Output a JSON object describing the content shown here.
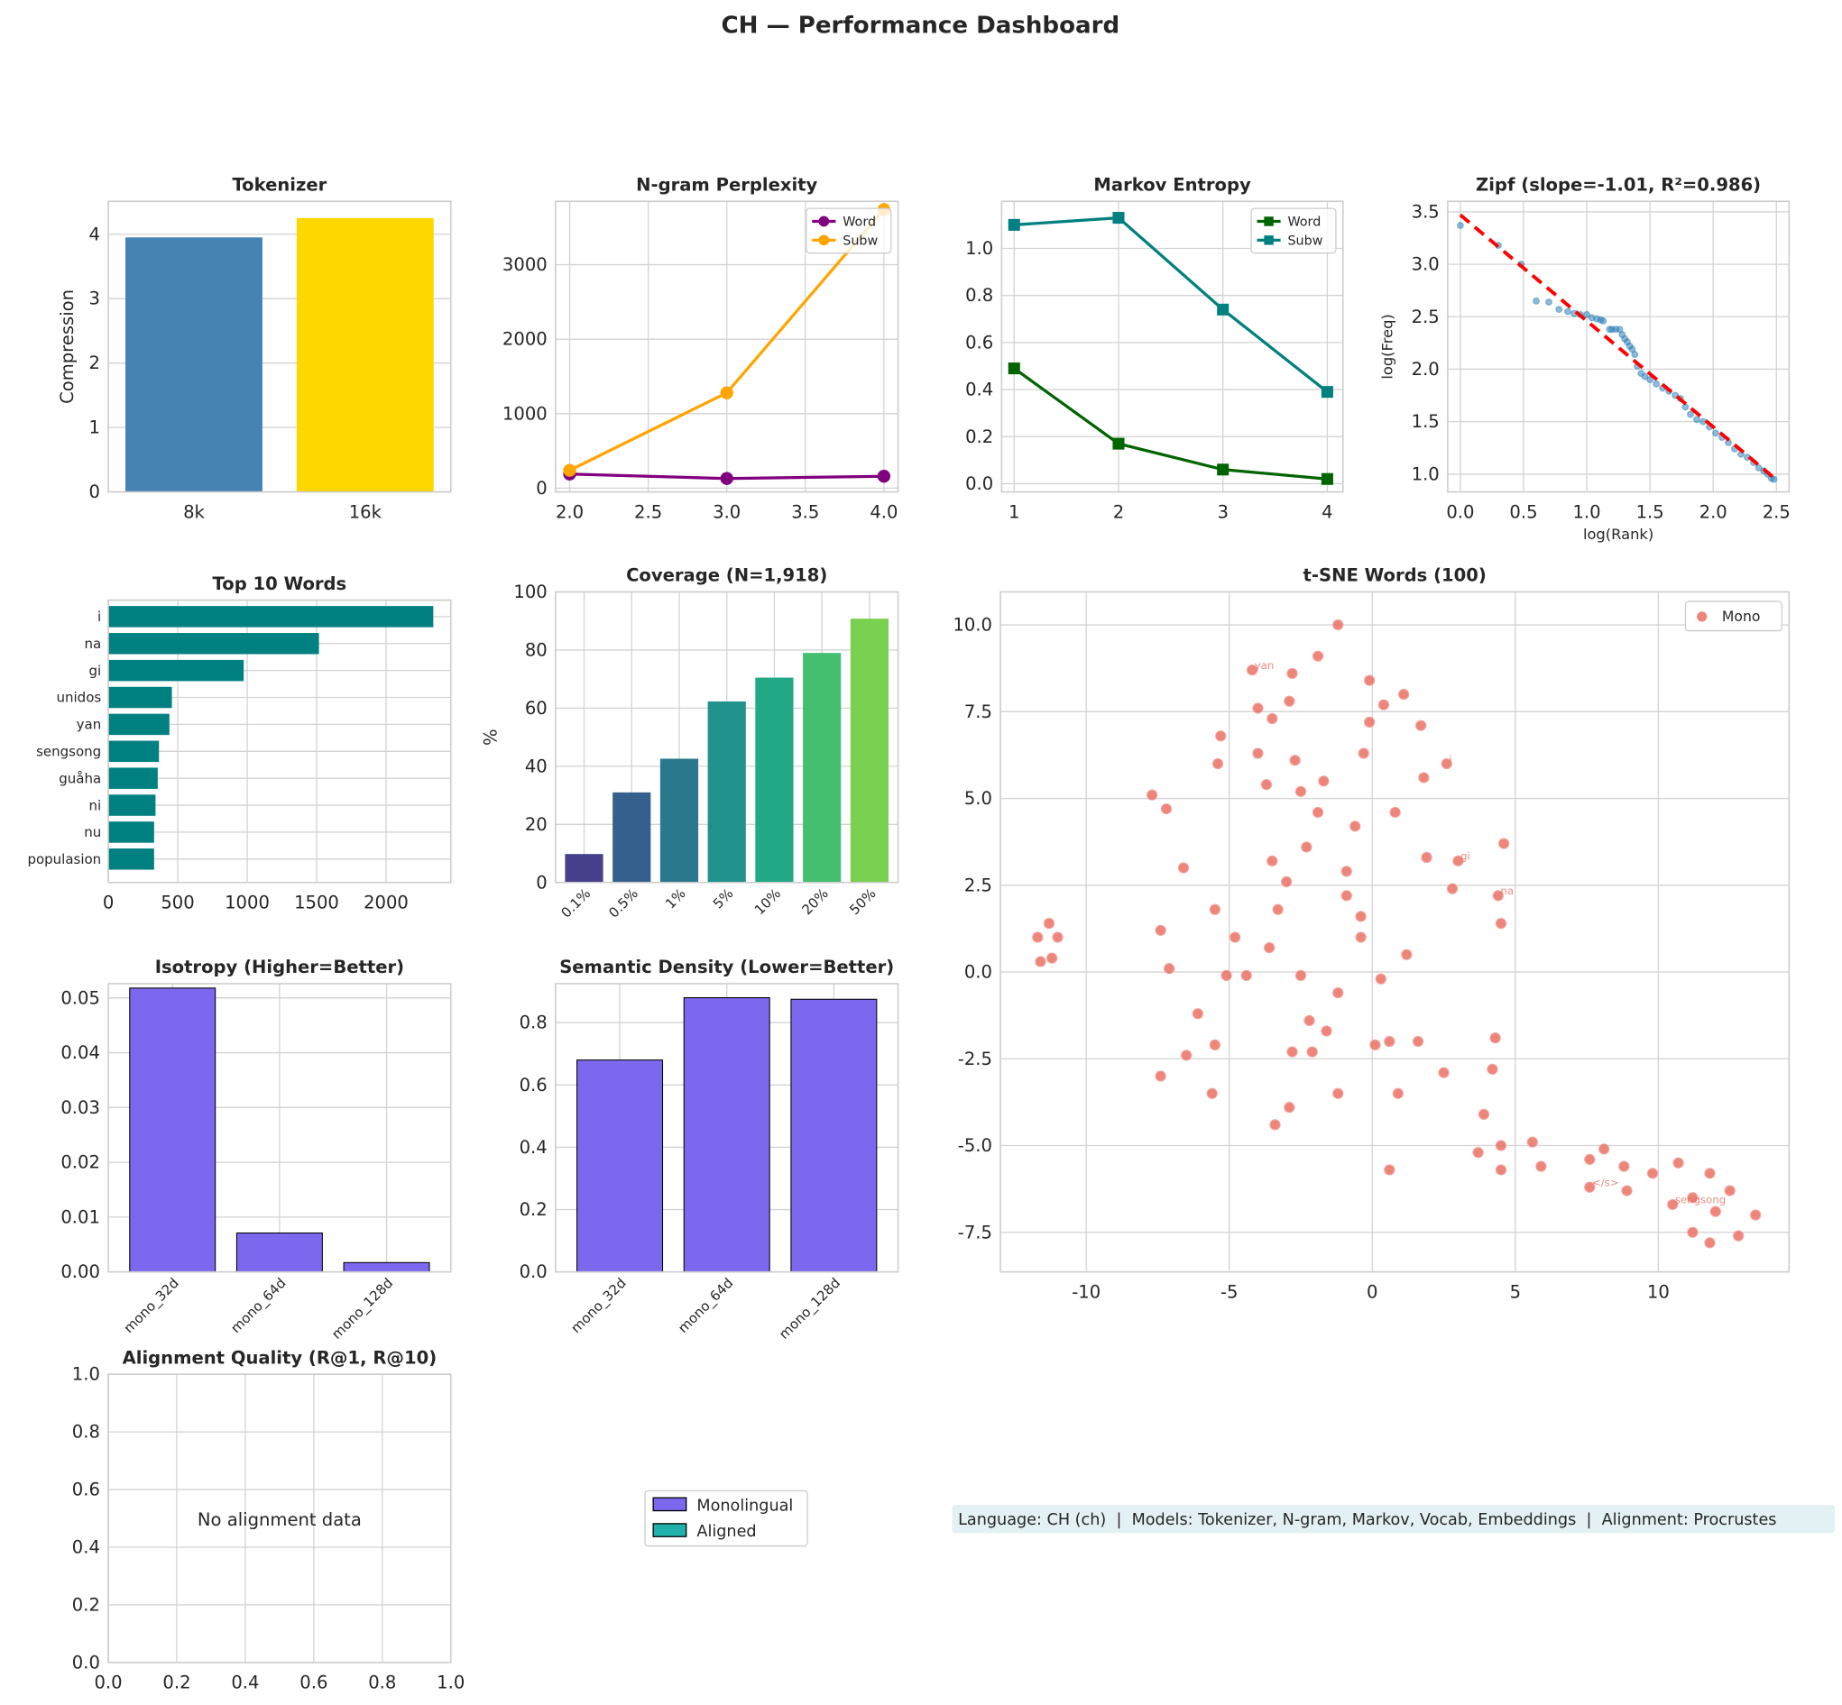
{
  "title": "CH — Performance Dashboard",
  "chart_data": [
    {
      "id": "tokenizer",
      "type": "bar",
      "title": "Tokenizer",
      "categories": [
        "8k",
        "16k"
      ],
      "values": [
        3.95,
        4.25
      ],
      "colors": [
        "#4682b4",
        "#ffd700"
      ],
      "ylabel": "Compression",
      "ylim": [
        0,
        4.51
      ],
      "yticks": [
        0,
        1,
        2,
        3,
        4
      ],
      "grid": true
    },
    {
      "id": "ngram",
      "type": "line",
      "title": "N-gram Perplexity",
      "x": [
        2,
        3,
        4
      ],
      "series": [
        {
          "name": "Word",
          "values": [
            190,
            130,
            160
          ],
          "color": "#800080",
          "marker": "circle"
        },
        {
          "name": "Subw",
          "values": [
            240,
            1280,
            3740
          ],
          "color": "#ffa500",
          "marker": "circle"
        }
      ],
      "xlim": [
        1.91,
        4.09
      ],
      "xticks": [
        "2.0",
        "2.5",
        "3.0",
        "3.5",
        "4.0"
      ],
      "ylim": [
        -50,
        3850
      ],
      "yticks": [
        0,
        1000,
        2000,
        3000
      ],
      "legend": "top-right",
      "grid": true
    },
    {
      "id": "markov",
      "type": "line",
      "title": "Markov Entropy",
      "x": [
        1,
        2,
        3,
        4
      ],
      "series": [
        {
          "name": "Word",
          "values": [
            0.49,
            0.17,
            0.06,
            0.02
          ],
          "color": "#006400",
          "marker": "square"
        },
        {
          "name": "Subw",
          "values": [
            1.1,
            1.13,
            0.74,
            0.39
          ],
          "color": "#008080",
          "marker": "square"
        }
      ],
      "xlim": [
        0.88,
        4.15
      ],
      "xticks": [
        "1",
        "2",
        "3",
        "4"
      ],
      "ylim": [
        -0.035,
        1.2
      ],
      "yticks": [
        "0.0",
        "0.2",
        "0.4",
        "0.6",
        "0.8",
        "1.0"
      ],
      "legend": "top-right",
      "grid": true
    },
    {
      "id": "zipf",
      "type": "scatter",
      "title": "Zipf (slope=-1.01, R²=0.986)",
      "xlabel": "log(Rank)",
      "ylabel": "log(Freq)",
      "xlim": [
        -0.1,
        2.6
      ],
      "ylim": [
        0.83,
        3.6
      ],
      "xticks": [
        "0.0",
        "0.5",
        "1.0",
        "1.5",
        "2.0",
        "2.5"
      ],
      "yticks": [
        "1.0",
        "1.5",
        "2.0",
        "2.5",
        "3.0",
        "3.5"
      ],
      "point_color": "#1f77b4",
      "fit": {
        "slope": -1.01,
        "intercept": 3.47,
        "x_range": [
          0,
          2.48
        ],
        "color": "#ff0000"
      },
      "points": [
        [
          0,
          3.37
        ],
        [
          0.3,
          3.18
        ],
        [
          0.48,
          3.0
        ],
        [
          0.6,
          2.65
        ],
        [
          0.7,
          2.64
        ],
        [
          0.78,
          2.57
        ],
        [
          0.85,
          2.55
        ],
        [
          0.9,
          2.53
        ],
        [
          0.95,
          2.52
        ],
        [
          1.0,
          2.52
        ],
        [
          1.04,
          2.49
        ],
        [
          1.08,
          2.48
        ],
        [
          1.11,
          2.47
        ],
        [
          1.13,
          2.46
        ],
        [
          1.18,
          2.38
        ],
        [
          1.2,
          2.38
        ],
        [
          1.23,
          2.38
        ],
        [
          1.26,
          2.38
        ],
        [
          1.28,
          2.33
        ],
        [
          1.3,
          2.29
        ],
        [
          1.32,
          2.26
        ],
        [
          1.34,
          2.22
        ],
        [
          1.36,
          2.19
        ],
        [
          1.38,
          2.14
        ],
        [
          1.4,
          2.03
        ],
        [
          1.43,
          1.96
        ],
        [
          1.46,
          1.93
        ],
        [
          1.5,
          1.9
        ],
        [
          1.55,
          1.86
        ],
        [
          1.6,
          1.82
        ],
        [
          1.65,
          1.79
        ],
        [
          1.7,
          1.75
        ],
        [
          1.74,
          1.72
        ],
        [
          1.78,
          1.64
        ],
        [
          1.82,
          1.57
        ],
        [
          1.87,
          1.52
        ],
        [
          1.92,
          1.5
        ],
        [
          1.97,
          1.45
        ],
        [
          2.02,
          1.39
        ],
        [
          2.07,
          1.35
        ],
        [
          2.12,
          1.3
        ],
        [
          2.17,
          1.24
        ],
        [
          2.22,
          1.19
        ],
        [
          2.27,
          1.16
        ],
        [
          2.32,
          1.11
        ],
        [
          2.36,
          1.06
        ],
        [
          2.4,
          1.03
        ],
        [
          2.43,
          1.0
        ],
        [
          2.46,
          0.96
        ],
        [
          2.48,
          0.95
        ]
      ],
      "grid": true
    },
    {
      "id": "top10",
      "type": "barh",
      "title": "Top 10 Words",
      "categories": [
        "i",
        "na",
        "gi",
        "unidos",
        "yan",
        "sengsong",
        "guåha",
        "ni",
        "nu",
        "populasion"
      ],
      "values": [
        2340,
        1517,
        975,
        458,
        440,
        365,
        356,
        340,
        330,
        330
      ],
      "color": "#008080",
      "xlim": [
        0,
        2466
      ],
      "xticks": [
        0,
        500,
        1000,
        1500,
        2000
      ],
      "grid": true
    },
    {
      "id": "coverage",
      "type": "bar",
      "title": "Coverage (N=1,918)",
      "categories": [
        "0.1%",
        "0.5%",
        "1%",
        "5%",
        "10%",
        "20%",
        "50%"
      ],
      "values": [
        9.8,
        31,
        42.6,
        62.3,
        70.5,
        79,
        90.8
      ],
      "colors": [
        "#46408a",
        "#355f8d",
        "#2a788e",
        "#21918c",
        "#22a884",
        "#44bf70",
        "#7ad151"
      ],
      "ylabel": "%",
      "ylim": [
        0,
        100
      ],
      "yticks": [
        0,
        20,
        40,
        60,
        80,
        100
      ],
      "grid": true
    },
    {
      "id": "tsne",
      "type": "scatter",
      "title": "t-SNE Words (100)",
      "xlim": [
        -13.0,
        14.57
      ],
      "ylim": [
        -8.64,
        10.95
      ],
      "xticks": [
        -10,
        -5,
        0,
        5,
        10
      ],
      "yticks": [
        "-7.5",
        "-5.0",
        "-2.5",
        "0.0",
        "2.5",
        "5.0",
        "7.5",
        "10.0"
      ],
      "legend": "top-right",
      "series_name": "Mono",
      "color": "#e8665a",
      "points": [
        [
          -1.2,
          10.0
        ],
        [
          -1.9,
          9.1
        ],
        [
          -4.2,
          8.7
        ],
        [
          -2.8,
          8.6
        ],
        [
          -0.1,
          8.4
        ],
        [
          1.1,
          8.0
        ],
        [
          0.4,
          7.7
        ],
        [
          -2.9,
          7.8
        ],
        [
          -4.0,
          7.6
        ],
        [
          -3.5,
          7.3
        ],
        [
          -0.1,
          7.2
        ],
        [
          1.7,
          7.1
        ],
        [
          -5.3,
          6.8
        ],
        [
          -4.0,
          6.3
        ],
        [
          -2.7,
          6.1
        ],
        [
          -0.3,
          6.3
        ],
        [
          2.6,
          6.0
        ],
        [
          -5.4,
          6.0
        ],
        [
          -1.7,
          5.5
        ],
        [
          -3.7,
          5.4
        ],
        [
          -2.5,
          5.2
        ],
        [
          1.8,
          5.6
        ],
        [
          -7.7,
          5.1
        ],
        [
          -7.2,
          4.7
        ],
        [
          -1.9,
          4.6
        ],
        [
          -0.6,
          4.2
        ],
        [
          0.8,
          4.6
        ],
        [
          4.6,
          3.7
        ],
        [
          -3.5,
          3.2
        ],
        [
          1.9,
          3.3
        ],
        [
          3.0,
          3.2
        ],
        [
          -2.3,
          3.6
        ],
        [
          -6.6,
          3.0
        ],
        [
          -0.9,
          2.9
        ],
        [
          -3.0,
          2.6
        ],
        [
          -0.9,
          2.2
        ],
        [
          2.8,
          2.4
        ],
        [
          4.4,
          2.2
        ],
        [
          -5.5,
          1.8
        ],
        [
          -3.3,
          1.8
        ],
        [
          -0.4,
          1.6
        ],
        [
          4.5,
          1.4
        ],
        [
          -7.4,
          1.2
        ],
        [
          -3.6,
          0.7
        ],
        [
          -4.8,
          1.0
        ],
        [
          -0.4,
          1.0
        ],
        [
          1.2,
          0.5
        ],
        [
          -11.7,
          1.0
        ],
        [
          -11.3,
          1.4
        ],
        [
          -11.0,
          1.0
        ],
        [
          -11.6,
          0.3
        ],
        [
          -11.2,
          0.4
        ],
        [
          -7.1,
          0.1
        ],
        [
          -5.1,
          -0.1
        ],
        [
          -4.4,
          -0.1
        ],
        [
          -2.5,
          -0.1
        ],
        [
          0.3,
          -0.2
        ],
        [
          -1.2,
          -0.6
        ],
        [
          -6.1,
          -1.2
        ],
        [
          -2.2,
          -1.4
        ],
        [
          -1.6,
          -1.7
        ],
        [
          -5.5,
          -2.1
        ],
        [
          -6.5,
          -2.4
        ],
        [
          -2.8,
          -2.3
        ],
        [
          -2.1,
          -2.3
        ],
        [
          0.1,
          -2.1
        ],
        [
          0.6,
          -2.0
        ],
        [
          1.6,
          -2.0
        ],
        [
          4.3,
          -1.9
        ],
        [
          2.5,
          -2.9
        ],
        [
          4.2,
          -2.8
        ],
        [
          -7.4,
          -3.0
        ],
        [
          -5.6,
          -3.5
        ],
        [
          -1.2,
          -3.5
        ],
        [
          0.9,
          -3.5
        ],
        [
          -2.9,
          -3.9
        ],
        [
          -3.4,
          -4.4
        ],
        [
          3.9,
          -4.1
        ],
        [
          3.7,
          -5.2
        ],
        [
          4.5,
          -5.0
        ],
        [
          4.5,
          -5.7
        ],
        [
          5.6,
          -4.9
        ],
        [
          5.9,
          -5.6
        ],
        [
          0.6,
          -5.7
        ],
        [
          7.6,
          -5.4
        ],
        [
          8.1,
          -5.1
        ],
        [
          8.8,
          -5.6
        ],
        [
          7.6,
          -6.2
        ],
        [
          8.9,
          -6.3
        ],
        [
          9.8,
          -5.8
        ],
        [
          10.7,
          -5.5
        ],
        [
          11.8,
          -5.8
        ],
        [
          12.5,
          -6.3
        ],
        [
          10.5,
          -6.7
        ],
        [
          11.2,
          -6.5
        ],
        [
          12.0,
          -6.9
        ],
        [
          13.4,
          -7.0
        ],
        [
          11.2,
          -7.5
        ],
        [
          12.8,
          -7.6
        ],
        [
          11.8,
          -7.8
        ]
      ],
      "labels": [
        {
          "text": "yan",
          "x": -4.2,
          "y": 8.7
        },
        {
          "text": "i",
          "x": 2.6,
          "y": 6.0
        },
        {
          "text": "gi",
          "x": 3.0,
          "y": 3.2
        },
        {
          "text": "na",
          "x": 4.4,
          "y": 2.2
        },
        {
          "text": "</s>",
          "x": 7.6,
          "y": -6.2
        },
        {
          "text": "sengsong",
          "x": 10.5,
          "y": -6.7
        }
      ],
      "grid": true
    },
    {
      "id": "isotropy",
      "type": "bar",
      "title": "Isotropy (Higher=Better)",
      "categories": [
        "mono_32d",
        "mono_64d",
        "mono_128d"
      ],
      "values": [
        0.0518,
        0.0071,
        0.0017
      ],
      "color": "#7b68ee",
      "ylim": [
        0,
        0.0526
      ],
      "yticks": [
        "0.00",
        "0.01",
        "0.02",
        "0.03",
        "0.04",
        "0.05"
      ],
      "grid": true
    },
    {
      "id": "semantic",
      "type": "bar",
      "title": "Semantic Density (Lower=Better)",
      "categories": [
        "mono_32d",
        "mono_64d",
        "mono_128d"
      ],
      "values": [
        0.68,
        0.88,
        0.875
      ],
      "color": "#7b68ee",
      "ylim": [
        0,
        0.925
      ],
      "yticks": [
        "0.0",
        "0.2",
        "0.4",
        "0.6",
        "0.8"
      ],
      "grid": true
    },
    {
      "id": "alignment",
      "type": "empty",
      "title": "Alignment Quality (R@1, R@10)",
      "message": "No alignment data",
      "xlim": [
        0,
        1
      ],
      "ylim": [
        0,
        1
      ],
      "xticks": [
        "0.0",
        "0.2",
        "0.4",
        "0.6",
        "0.8",
        "1.0"
      ],
      "yticks": [
        "0.0",
        "0.2",
        "0.4",
        "0.6",
        "0.8",
        "1.0"
      ],
      "grid": true
    }
  ],
  "legend": {
    "items": [
      {
        "label": "Monolingual",
        "color": "#7b68ee"
      },
      {
        "label": "Aligned",
        "color": "#20b2aa"
      }
    ]
  },
  "footer": "Language: CH (ch)  |  Models: Tokenizer, N-gram, Markov, Vocab, Embeddings  |  Alignment: Procrustes"
}
